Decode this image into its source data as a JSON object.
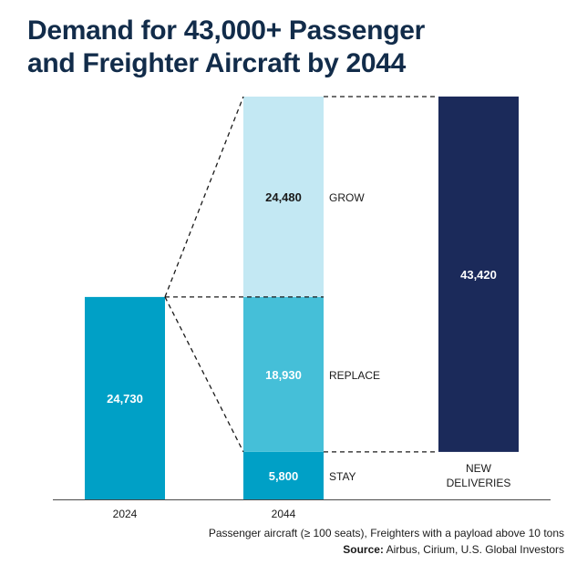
{
  "title": {
    "line1": "Demand for 43,000+ Passenger",
    "line2": "and Freighter Aircraft by 2044"
  },
  "chart_data": {
    "type": "bar",
    "title": "Demand for 43,000+ Passenger and Freighter Aircraft by 2044",
    "categories": [
      "2024",
      "2044",
      "NEW DELIVERIES"
    ],
    "bars": [
      {
        "category": "2024",
        "segments": [
          {
            "label": "",
            "value": 24730,
            "value_label": "24,730",
            "color": "#00a0c6"
          }
        ]
      },
      {
        "category": "2044",
        "segments": [
          {
            "label": "STAY",
            "value": 5800,
            "value_label": "5,800",
            "color": "#00a0c6"
          },
          {
            "label": "REPLACE",
            "value": 18930,
            "value_label": "18,930",
            "color": "#45bfd8"
          },
          {
            "label": "GROW",
            "value": 24480,
            "value_label": "24,480",
            "color": "#c3e8f3"
          }
        ]
      },
      {
        "category": "NEW DELIVERIES",
        "base": 5800,
        "segments": [
          {
            "label": "",
            "value": 43420,
            "value_label": "43,420",
            "color": "#1b2a5a"
          }
        ]
      }
    ],
    "xlabels": [
      "2024",
      "2044",
      "NEW",
      "DELIVERIES"
    ],
    "ylim": [
      0,
      49210
    ],
    "grid": false,
    "legend": "none"
  },
  "footnote": "Passenger aircraft (≥ 100 seats), Freighters with a payload above 10 tons",
  "source": {
    "label": "Source:",
    "text": " Airbus, Cirium, U.S. Global Investors"
  }
}
